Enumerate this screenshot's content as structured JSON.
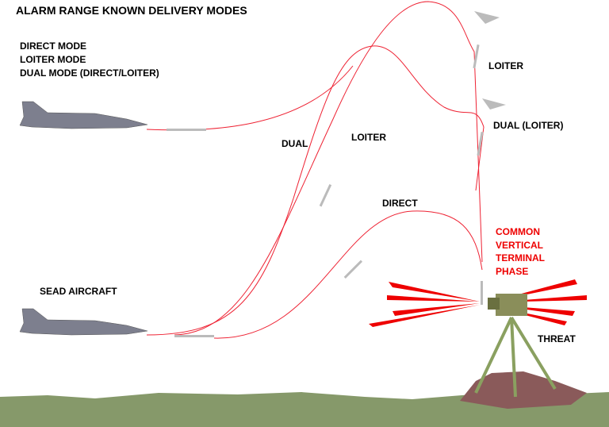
{
  "title": "ALARM RANGE KNOWN DELIVERY MODES",
  "modes": [
    "DIRECT MODE",
    "LOITER MODE",
    "DUAL MODE (DIRECT/LOITER)"
  ],
  "labels": {
    "dual": "DUAL",
    "loiter": "LOITER",
    "direct": "DIRECT",
    "loiter_terminal": "LOITER",
    "dual_terminal": "DUAL (LOITER)"
  },
  "terminal_phase": [
    "COMMON",
    "VERTICAL",
    "TERMINAL",
    "PHASE"
  ],
  "aircraft": "SEAD AIRCRAFT",
  "threat": "THREAT"
}
